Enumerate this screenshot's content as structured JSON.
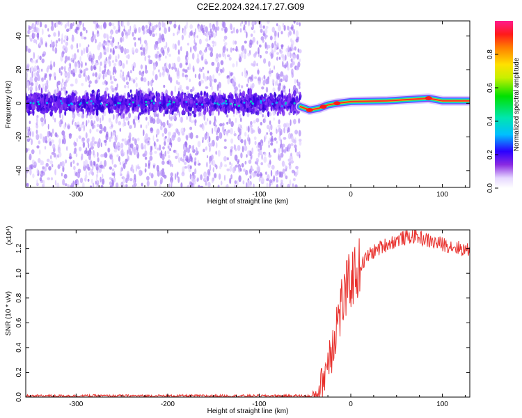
{
  "title": "C2E2.2024.324.17.27.G09",
  "colors": {
    "snr_line": "#e8302c",
    "background_purple": "#b38cf0",
    "band_core": "#3a00e0"
  },
  "chart_data": [
    {
      "type": "heatmap",
      "name": "spectrogram",
      "xlabel": "Height of straight line (km)",
      "ylabel": "Frequency (Hz)",
      "xlim": [
        -355,
        130
      ],
      "ylim": [
        -50,
        49
      ],
      "xticks": [
        -300,
        -200,
        -100,
        0,
        100
      ],
      "yticks": [
        -40,
        -20,
        0,
        20,
        40
      ],
      "noise_region": {
        "x_range": [
          -355,
          -55
        ],
        "band_center_hz": 0,
        "band_halfwidth_hz": 9
      },
      "signal_track": [
        {
          "x": -55,
          "hz": -2
        },
        {
          "x": -45,
          "hz": -4
        },
        {
          "x": -35,
          "hz": -3
        },
        {
          "x": -25,
          "hz": -1
        },
        {
          "x": -15,
          "hz": 0
        },
        {
          "x": 0,
          "hz": 1
        },
        {
          "x": 40,
          "hz": 1.5
        },
        {
          "x": 85,
          "hz": 3
        },
        {
          "x": 100,
          "hz": 1.5
        },
        {
          "x": 130,
          "hz": 1.5
        }
      ],
      "colorbar": {
        "label": "Normalized spectral amplitude",
        "range": [
          0,
          1
        ],
        "ticks": [
          "0.0",
          "0.2",
          "0.4",
          "0.6",
          "0.8"
        ]
      }
    },
    {
      "type": "line",
      "name": "snr",
      "xlabel": "Height of straight line (km)",
      "ylabel": "SNR (10 * v/v)",
      "y_multiplier": "(x10⁴)",
      "xlim": [
        -355,
        130
      ],
      "ylim": [
        0,
        1.35
      ],
      "xticks": [
        -300,
        -200,
        -100,
        0,
        100
      ],
      "yticks": [
        "0.0",
        "0.2",
        "0.4",
        "0.6",
        "0.8",
        "1.0",
        "1.2"
      ],
      "series": [
        {
          "name": "SNR",
          "key_points": [
            {
              "x": -355,
              "y": 0.0
            },
            {
              "x": -45,
              "y": 0.0
            },
            {
              "x": -38,
              "y": 0.02
            },
            {
              "x": -30,
              "y": 0.15
            },
            {
              "x": -25,
              "y": 0.3
            },
            {
              "x": -20,
              "y": 0.45
            },
            {
              "x": -15,
              "y": 0.6
            },
            {
              "x": -10,
              "y": 0.75
            },
            {
              "x": -5,
              "y": 0.85
            },
            {
              "x": 0,
              "y": 0.95
            },
            {
              "x": 10,
              "y": 1.05
            },
            {
              "x": 20,
              "y": 1.15
            },
            {
              "x": 35,
              "y": 1.22
            },
            {
              "x": 55,
              "y": 1.28
            },
            {
              "x": 70,
              "y": 1.3
            },
            {
              "x": 90,
              "y": 1.25
            },
            {
              "x": 110,
              "y": 1.22
            },
            {
              "x": 130,
              "y": 1.18
            }
          ]
        }
      ]
    }
  ]
}
